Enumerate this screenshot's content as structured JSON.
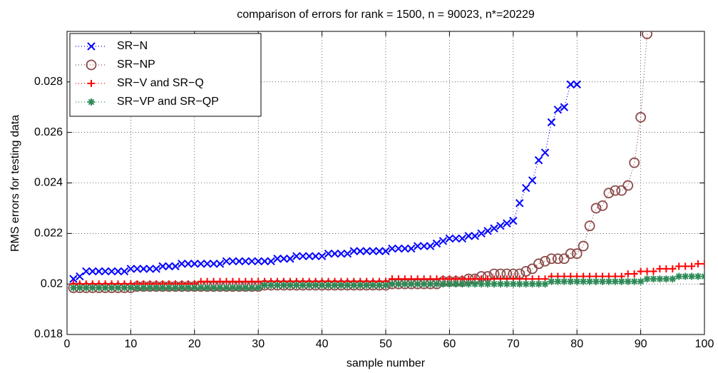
{
  "chart_data": {
    "type": "line",
    "title": "comparison of errors for rank = 1500, n = 90023,  n*=20229",
    "xlabel": "sample number",
    "ylabel": "RMS errors for testing data",
    "xlim": [
      0,
      100
    ],
    "ylim": [
      0.018,
      0.03
    ],
    "xticks": [
      0,
      10,
      20,
      30,
      40,
      50,
      60,
      70,
      80,
      90,
      100
    ],
    "yticks": [
      0.018,
      0.02,
      0.022,
      0.024,
      0.026,
      0.028
    ],
    "grid": true,
    "legend": "upper left",
    "x": [
      1,
      2,
      3,
      4,
      5,
      6,
      7,
      8,
      9,
      10,
      11,
      12,
      13,
      14,
      15,
      16,
      17,
      18,
      19,
      20,
      21,
      22,
      23,
      24,
      25,
      26,
      27,
      28,
      29,
      30,
      31,
      32,
      33,
      34,
      35,
      36,
      37,
      38,
      39,
      40,
      41,
      42,
      43,
      44,
      45,
      46,
      47,
      48,
      49,
      50,
      51,
      52,
      53,
      54,
      55,
      56,
      57,
      58,
      59,
      60,
      61,
      62,
      63,
      64,
      65,
      66,
      67,
      68,
      69,
      70,
      71,
      72,
      73,
      74,
      75,
      76,
      77,
      78,
      79,
      80,
      81,
      82,
      83,
      84,
      85,
      86,
      87,
      88,
      89,
      90,
      91,
      92,
      93,
      94,
      95,
      96,
      97,
      98,
      99,
      100
    ],
    "series": [
      {
        "name": "SR−N",
        "color": "#0000ff",
        "marker": "x",
        "values": [
          0.0202,
          0.0203,
          0.0205,
          0.0205,
          0.0205,
          0.0205,
          0.0205,
          0.0205,
          0.0205,
          0.0206,
          0.0206,
          0.0206,
          0.0206,
          0.0206,
          0.0207,
          0.0207,
          0.0207,
          0.0208,
          0.0208,
          0.0208,
          0.0208,
          0.0208,
          0.0208,
          0.0208,
          0.0209,
          0.0209,
          0.0209,
          0.0209,
          0.0209,
          0.0209,
          0.0209,
          0.0209,
          0.021,
          0.021,
          0.021,
          0.0211,
          0.0211,
          0.0211,
          0.0211,
          0.0211,
          0.0212,
          0.0212,
          0.0212,
          0.0212,
          0.0213,
          0.0213,
          0.0213,
          0.0213,
          0.0213,
          0.0213,
          0.0214,
          0.0214,
          0.0214,
          0.0214,
          0.0215,
          0.0215,
          0.0215,
          0.0216,
          0.0217,
          0.0218,
          0.0218,
          0.0218,
          0.0219,
          0.0219,
          0.022,
          0.0221,
          0.0222,
          0.0223,
          0.0224,
          0.0225,
          0.0232,
          0.0238,
          0.0241,
          0.0249,
          0.0252,
          0.0264,
          0.0269,
          0.027,
          0.0279,
          0.0279,
          null,
          null,
          null,
          null,
          null,
          null,
          null,
          null,
          null,
          null,
          null,
          null,
          null,
          null,
          null,
          null,
          null,
          null,
          null,
          null
        ]
      },
      {
        "name": "SR−NP",
        "color": "#8c4a4a",
        "marker": "o",
        "values": [
          0.01985,
          0.01985,
          0.01985,
          0.01985,
          0.01985,
          0.01985,
          0.01985,
          0.01985,
          0.01985,
          0.01985,
          0.0199,
          0.0199,
          0.0199,
          0.0199,
          0.0199,
          0.0199,
          0.0199,
          0.0199,
          0.0199,
          0.0199,
          0.0199,
          0.0199,
          0.0199,
          0.0199,
          0.0199,
          0.0199,
          0.0199,
          0.0199,
          0.0199,
          0.0199,
          0.01995,
          0.01995,
          0.01995,
          0.01995,
          0.01995,
          0.01995,
          0.01995,
          0.01995,
          0.01995,
          0.01995,
          0.01995,
          0.01995,
          0.01995,
          0.01995,
          0.01995,
          0.01995,
          0.01995,
          0.01995,
          0.01995,
          0.01995,
          0.02,
          0.02,
          0.02,
          0.02,
          0.02,
          0.02,
          0.02,
          0.02,
          0.0201,
          0.0201,
          0.0201,
          0.0201,
          0.0202,
          0.0202,
          0.0203,
          0.0203,
          0.0204,
          0.0204,
          0.0204,
          0.0204,
          0.0204,
          0.0205,
          0.0206,
          0.0208,
          0.0209,
          0.021,
          0.021,
          0.021,
          0.0212,
          0.0212,
          0.0215,
          0.0223,
          0.023,
          0.0231,
          0.0236,
          0.0237,
          0.0237,
          0.0239,
          0.0248,
          0.0266,
          0.0299,
          null,
          null,
          null,
          null,
          null,
          null,
          null,
          null,
          null
        ]
      },
      {
        "name": "SR−V and SR−Q",
        "color": "#ff0000",
        "marker": "+",
        "values": [
          0.02,
          0.02,
          0.02,
          0.02,
          0.02,
          0.02,
          0.02,
          0.02,
          0.02,
          0.02,
          0.02,
          0.02,
          0.02,
          0.02,
          0.02,
          0.02,
          0.02,
          0.02,
          0.02,
          0.02,
          0.0201,
          0.0201,
          0.0201,
          0.0201,
          0.0201,
          0.0201,
          0.0201,
          0.0201,
          0.0201,
          0.0201,
          0.0201,
          0.0201,
          0.0201,
          0.0201,
          0.0201,
          0.0201,
          0.0201,
          0.0201,
          0.0201,
          0.0201,
          0.0201,
          0.0201,
          0.0201,
          0.0201,
          0.0201,
          0.0201,
          0.0201,
          0.0201,
          0.0201,
          0.0201,
          0.0202,
          0.0202,
          0.0202,
          0.0202,
          0.0202,
          0.0202,
          0.0202,
          0.0202,
          0.0202,
          0.0202,
          0.0202,
          0.0202,
          0.0202,
          0.0202,
          0.0202,
          0.0202,
          0.0202,
          0.0202,
          0.0202,
          0.0202,
          0.0202,
          0.0202,
          0.0202,
          0.0202,
          0.0202,
          0.0203,
          0.0203,
          0.0203,
          0.0203,
          0.0203,
          0.0203,
          0.0203,
          0.0203,
          0.0203,
          0.0203,
          0.0203,
          0.0203,
          0.0204,
          0.0204,
          0.0205,
          0.0205,
          0.0205,
          0.0206,
          0.0206,
          0.0206,
          0.0207,
          0.0207,
          0.0207,
          0.0208,
          0.0208
        ]
      },
      {
        "name": "SR−VP and SR−QP",
        "color": "#2e8b57",
        "marker": "*",
        "values": [
          0.01985,
          0.01985,
          0.01985,
          0.01985,
          0.01985,
          0.01985,
          0.01985,
          0.01985,
          0.01985,
          0.01985,
          0.01985,
          0.01985,
          0.01985,
          0.01985,
          0.01985,
          0.01985,
          0.01985,
          0.01985,
          0.01985,
          0.01985,
          0.01985,
          0.01985,
          0.01985,
          0.01985,
          0.01985,
          0.01985,
          0.01985,
          0.01985,
          0.01985,
          0.01985,
          0.01995,
          0.01995,
          0.01995,
          0.01995,
          0.01995,
          0.01995,
          0.01995,
          0.01995,
          0.01995,
          0.01995,
          0.01995,
          0.01995,
          0.01995,
          0.01995,
          0.01995,
          0.01995,
          0.01995,
          0.01995,
          0.01995,
          0.01995,
          0.02,
          0.02,
          0.02,
          0.02,
          0.02,
          0.02,
          0.02,
          0.02,
          0.02,
          0.02,
          0.02,
          0.02,
          0.02,
          0.02,
          0.02,
          0.02,
          0.02,
          0.02,
          0.02,
          0.02,
          0.02,
          0.02,
          0.02,
          0.02,
          0.02,
          0.0201,
          0.0201,
          0.0201,
          0.0201,
          0.0201,
          0.0201,
          0.0201,
          0.0201,
          0.0201,
          0.0201,
          0.0201,
          0.0201,
          0.0201,
          0.0201,
          0.0201,
          0.0202,
          0.0202,
          0.0202,
          0.0202,
          0.0202,
          0.0203,
          0.0203,
          0.0203,
          0.0203,
          0.0203
        ]
      }
    ]
  }
}
